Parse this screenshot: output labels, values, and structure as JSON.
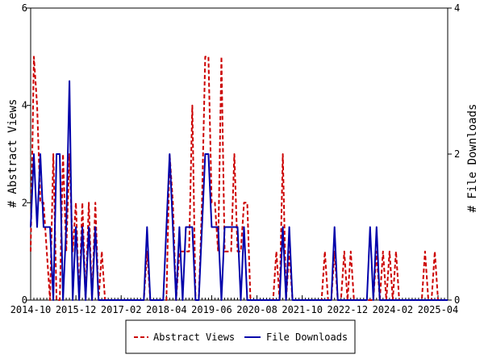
{
  "chart_data": {
    "type": "line",
    "ylabel_left": "# Abstract Views",
    "ylabel_right": "# File Downloads",
    "ylim_left": [
      0,
      6
    ],
    "ylim_right": [
      0,
      4
    ],
    "yticks_left": [
      "0",
      "2",
      "4",
      "6"
    ],
    "yticks_right": [
      "0",
      "2",
      "4"
    ],
    "xlim": [
      "2014-10",
      "2025-07"
    ],
    "xtick_labels": [
      "2014-10",
      "2015-12",
      "2017-02",
      "2018-04",
      "2019-06",
      "2020-08",
      "2021-10",
      "2022-12",
      "2024-02",
      "2025-04"
    ],
    "grid": false,
    "legend_position": "bottom",
    "series": [
      {
        "name": "Abstract Views",
        "axis": "left",
        "color": "#cc0000",
        "style": "dashed",
        "x": [
          "2014-10",
          "2014-11",
          "2014-12",
          "2015-01",
          "2015-02",
          "2015-03",
          "2015-04",
          "2015-05",
          "2015-06",
          "2015-07",
          "2015-08",
          "2015-09",
          "2015-10",
          "2015-11",
          "2015-12",
          "2016-01",
          "2016-02",
          "2016-03",
          "2016-04",
          "2016-05",
          "2016-06",
          "2016-07",
          "2016-08",
          "2016-09",
          "2016-10",
          "2016-11",
          "2017-02",
          "2017-03",
          "2017-04",
          "2017-05",
          "2017-06",
          "2017-07",
          "2017-08",
          "2017-09",
          "2017-10",
          "2017-11",
          "2017-12",
          "2018-01",
          "2018-02",
          "2018-03",
          "2018-04",
          "2018-05",
          "2018-06",
          "2018-07",
          "2018-08",
          "2018-09",
          "2018-10",
          "2018-11",
          "2018-12",
          "2019-01",
          "2019-02",
          "2019-03",
          "2019-04",
          "2019-05",
          "2019-06",
          "2019-07",
          "2019-08",
          "2019-09",
          "2019-10",
          "2019-11",
          "2019-12",
          "2020-01",
          "2020-02",
          "2020-03",
          "2020-04",
          "2020-05",
          "2020-06",
          "2020-07",
          "2020-08",
          "2020-09",
          "2020-10",
          "2020-11",
          "2020-12",
          "2021-01",
          "2021-02",
          "2021-03",
          "2021-04",
          "2021-05",
          "2021-06",
          "2021-07",
          "2021-08",
          "2021-09",
          "2021-10",
          "2021-11",
          "2021-12",
          "2022-01",
          "2022-02",
          "2022-03",
          "2022-04",
          "2022-05",
          "2022-06",
          "2022-07",
          "2022-08",
          "2022-09",
          "2022-10",
          "2022-11",
          "2022-12",
          "2023-01",
          "2023-02",
          "2023-03",
          "2023-04",
          "2023-05",
          "2023-06",
          "2023-07",
          "2023-08",
          "2023-09",
          "2023-10",
          "2023-11",
          "2023-12",
          "2024-01",
          "2024-02",
          "2024-03",
          "2024-04",
          "2024-05",
          "2024-06",
          "2024-07",
          "2024-08",
          "2024-09",
          "2024-10",
          "2024-11",
          "2024-12",
          "2025-01",
          "2025-02",
          "2025-03",
          "2025-04",
          "2025-05",
          "2025-06",
          "2025-07"
        ],
        "y": [
          1,
          5,
          4,
          2,
          2,
          1,
          0,
          3,
          0,
          0,
          3,
          1,
          3,
          1,
          2,
          0,
          2,
          0,
          2,
          0,
          2,
          0,
          1,
          0,
          0,
          0,
          0,
          0,
          0,
          0,
          0,
          0,
          0,
          0,
          1,
          0,
          0,
          0,
          0,
          0,
          0,
          3,
          2,
          0,
          1,
          1,
          1,
          1,
          4,
          0,
          0,
          2,
          5,
          5,
          2,
          2,
          1,
          5,
          1,
          1,
          1,
          3,
          1,
          1,
          2,
          2,
          0,
          0,
          0,
          0,
          0,
          0,
          0,
          0,
          1,
          0,
          3,
          0,
          1,
          0,
          0,
          0,
          0,
          0,
          0,
          0,
          0,
          0,
          0,
          1,
          0,
          0,
          1,
          0,
          0,
          1,
          0,
          1,
          0,
          0,
          0,
          0,
          0,
          0,
          0,
          1,
          0,
          1,
          0,
          1,
          0,
          1,
          0,
          0,
          0,
          0,
          0,
          0,
          0,
          0,
          1,
          0,
          0,
          1,
          0,
          0,
          0,
          0
        ]
      },
      {
        "name": "File Downloads",
        "axis": "right",
        "color": "#0000aa",
        "style": "solid",
        "x": [
          "2014-10",
          "2014-11",
          "2014-12",
          "2015-01",
          "2015-02",
          "2015-03",
          "2015-04",
          "2015-05",
          "2015-06",
          "2015-07",
          "2015-08",
          "2015-09",
          "2015-10",
          "2015-11",
          "2015-12",
          "2016-01",
          "2016-02",
          "2016-03",
          "2016-04",
          "2016-05",
          "2016-06",
          "2016-07",
          "2016-08",
          "2016-09",
          "2016-10",
          "2016-11",
          "2017-02",
          "2017-03",
          "2017-04",
          "2017-05",
          "2017-06",
          "2017-07",
          "2017-08",
          "2017-09",
          "2017-10",
          "2017-11",
          "2017-12",
          "2018-01",
          "2018-02",
          "2018-03",
          "2018-04",
          "2018-05",
          "2018-06",
          "2018-07",
          "2018-08",
          "2018-09",
          "2018-10",
          "2018-11",
          "2018-12",
          "2019-01",
          "2019-02",
          "2019-03",
          "2019-04",
          "2019-05",
          "2019-06",
          "2019-07",
          "2019-08",
          "2019-09",
          "2019-10",
          "2019-11",
          "2019-12",
          "2020-01",
          "2020-02",
          "2020-03",
          "2020-04",
          "2020-05",
          "2020-06",
          "2020-07",
          "2020-08",
          "2020-09",
          "2020-10",
          "2020-11",
          "2020-12",
          "2021-01",
          "2021-02",
          "2021-03",
          "2021-04",
          "2021-05",
          "2021-06",
          "2021-07",
          "2021-08",
          "2021-09",
          "2021-10",
          "2021-11",
          "2021-12",
          "2022-01",
          "2022-02",
          "2022-03",
          "2022-04",
          "2022-05",
          "2022-06",
          "2022-07",
          "2022-08",
          "2022-09",
          "2022-10",
          "2022-11",
          "2022-12",
          "2023-01",
          "2023-02",
          "2023-03",
          "2023-04",
          "2023-05",
          "2023-06",
          "2023-07",
          "2023-08",
          "2023-09",
          "2023-10",
          "2023-11",
          "2023-12",
          "2024-01",
          "2024-02",
          "2024-03",
          "2024-04",
          "2024-05",
          "2024-06",
          "2024-07",
          "2024-08",
          "2024-09",
          "2024-10",
          "2024-11",
          "2024-12",
          "2025-01",
          "2025-02",
          "2025-03",
          "2025-04",
          "2025-05",
          "2025-06",
          "2025-07"
        ],
        "y": [
          1,
          2,
          1,
          2,
          1,
          1,
          1,
          0,
          2,
          2,
          0,
          1,
          3,
          0,
          1,
          0,
          1,
          0,
          1,
          0,
          1,
          0,
          0,
          0,
          0,
          0,
          0,
          0,
          0,
          0,
          0,
          0,
          0,
          0,
          1,
          0,
          0,
          0,
          0,
          0,
          1,
          2,
          1,
          0,
          1,
          0,
          1,
          1,
          1,
          0,
          0,
          1,
          2,
          2,
          1,
          1,
          1,
          0,
          1,
          1,
          1,
          1,
          1,
          0,
          1,
          0,
          0,
          0,
          0,
          0,
          0,
          0,
          0,
          0,
          0,
          0,
          1,
          0,
          1,
          0,
          0,
          0,
          0,
          0,
          0,
          0,
          0,
          0,
          0,
          0,
          0,
          0,
          1,
          0,
          0,
          0,
          0,
          0,
          0,
          0,
          0,
          0,
          0,
          1,
          0,
          1,
          0,
          0,
          0,
          0,
          0,
          0,
          0,
          0,
          0,
          0,
          0,
          0,
          0,
          0,
          0,
          0,
          0,
          0,
          0,
          0,
          0,
          0
        ]
      }
    ],
    "legend": [
      {
        "label": "Abstract Views",
        "color": "#cc0000",
        "style": "dashed"
      },
      {
        "label": "File Downloads",
        "color": "#0000aa",
        "style": "solid"
      }
    ]
  }
}
